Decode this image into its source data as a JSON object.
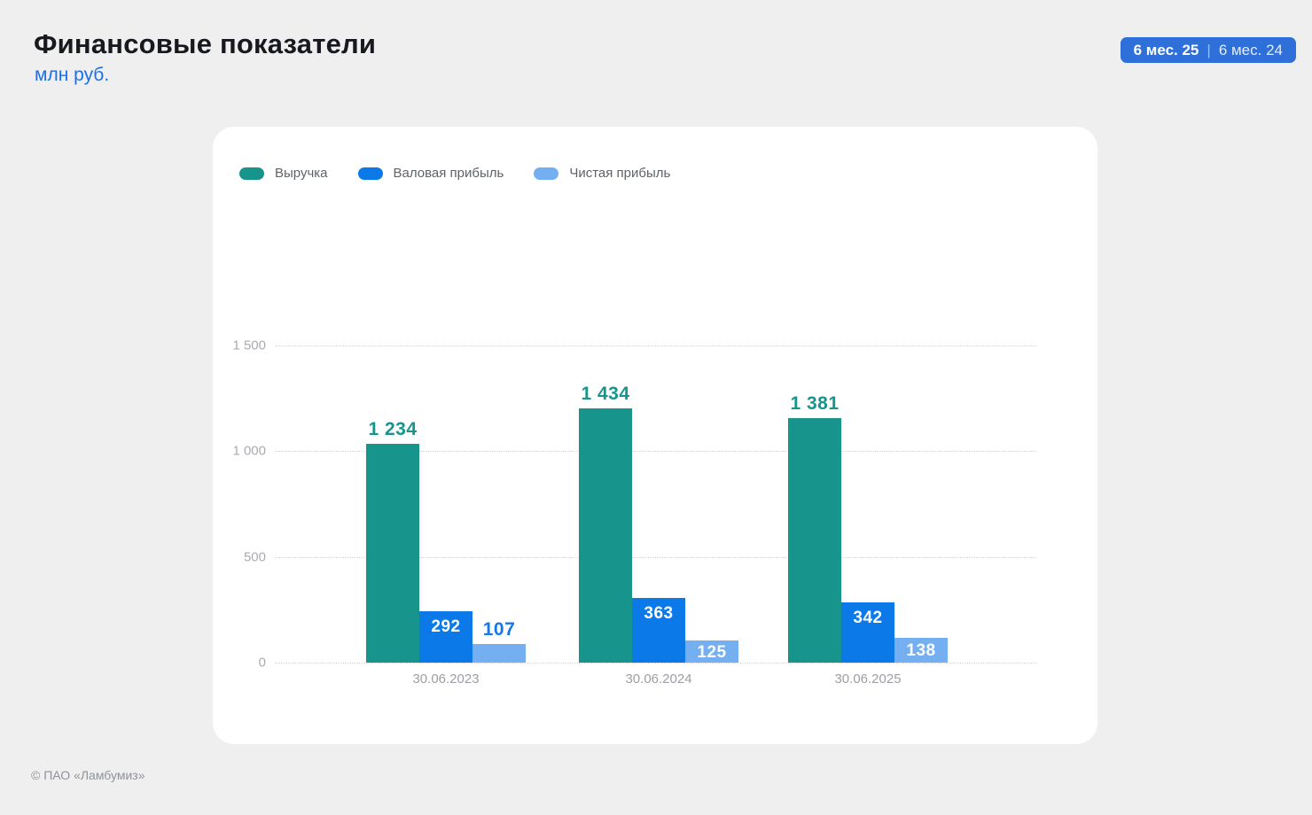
{
  "header": {
    "title": "Финансовые показатели",
    "subtitle": "млн руб.",
    "period_badge": {
      "primary": "6 мес. 25",
      "separator": "|",
      "secondary": "6 мес. 24"
    }
  },
  "footer": {
    "copyright": "© ПАО «Ламбумиз»"
  },
  "colors": {
    "badge_blue": "#2e6fd9",
    "subtitle_blue": "#1a70e8",
    "page_bg": "#efeff0",
    "card_bg": "#ffffff",
    "grid_gray": "#d7d7da",
    "axis_text_gray": "#a9abb0"
  },
  "chart_data": {
    "type": "bar",
    "title": "Финансовые показатели",
    "unit": "млн руб.",
    "categories": [
      "30.06.2023",
      "30.06.2024",
      "30.06.2025"
    ],
    "series": [
      {
        "name": "Выручка",
        "color": "#17958d",
        "values": [
          1234,
          1434,
          1381
        ],
        "labels": [
          "1 234",
          "1 434",
          "1 381"
        ],
        "label_style": "above"
      },
      {
        "name": "Валовая прибыль",
        "color": "#0b79e8",
        "values": [
          292,
          363,
          342
        ],
        "labels": [
          "292",
          "363",
          "342"
        ],
        "label_style": "inside"
      },
      {
        "name": "Чистая прибыль",
        "color": "#74b0f1",
        "values": [
          107,
          125,
          138
        ],
        "labels": [
          "107",
          "125",
          "138"
        ],
        "label_style": "inside",
        "label_overrides": [
          {
            "index": 0,
            "style": "above",
            "color": "#1577e8"
          }
        ]
      }
    ],
    "y_ticks": [
      "1 500",
      "1 000",
      "500",
      "0"
    ],
    "y_tick_values": [
      1500,
      1000,
      500,
      0
    ],
    "ylim": [
      0,
      1500
    ],
    "grid": "dotted-horizontal",
    "legend_position": "top-left"
  }
}
